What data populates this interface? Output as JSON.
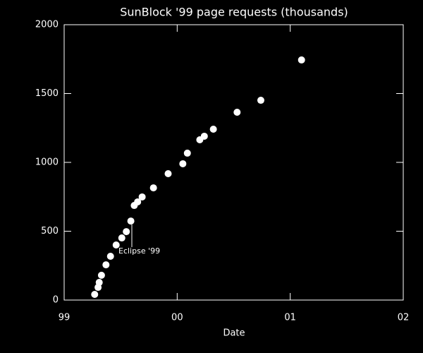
{
  "chart_data": {
    "type": "scatter",
    "title": "SunBlock '99 page requests (thousands)",
    "x_label": "Date",
    "annotation": "Eclipse '99",
    "color": "#ffffff",
    "x": [
      1999.27,
      1999.3,
      1999.31,
      1999.33,
      1999.37,
      1999.41,
      1999.46,
      1999.51,
      1999.55,
      1999.59,
      1999.62,
      1999.65,
      1999.69,
      1999.79,
      1999.92,
      2000.05,
      2000.09,
      2000.2,
      2000.24,
      2000.32,
      2000.53,
      2000.74,
      2001.1
    ],
    "values": [
      41,
      92,
      128,
      180,
      256,
      318,
      400,
      451,
      497,
      574,
      687,
      713,
      749,
      815,
      918,
      990,
      1067,
      1164,
      1190,
      1241,
      1364,
      1451,
      1744
    ],
    "xlim": [
      1999,
      2002
    ],
    "xticks": [
      {
        "value": 1999,
        "label": "99"
      },
      {
        "value": 2000,
        "label": "00"
      },
      {
        "value": 2001,
        "label": "01"
      },
      {
        "value": 2002,
        "label": "02"
      }
    ],
    "ylim": [
      0,
      2000
    ],
    "yticks": [
      0,
      500,
      1000,
      1500,
      2000
    ]
  }
}
